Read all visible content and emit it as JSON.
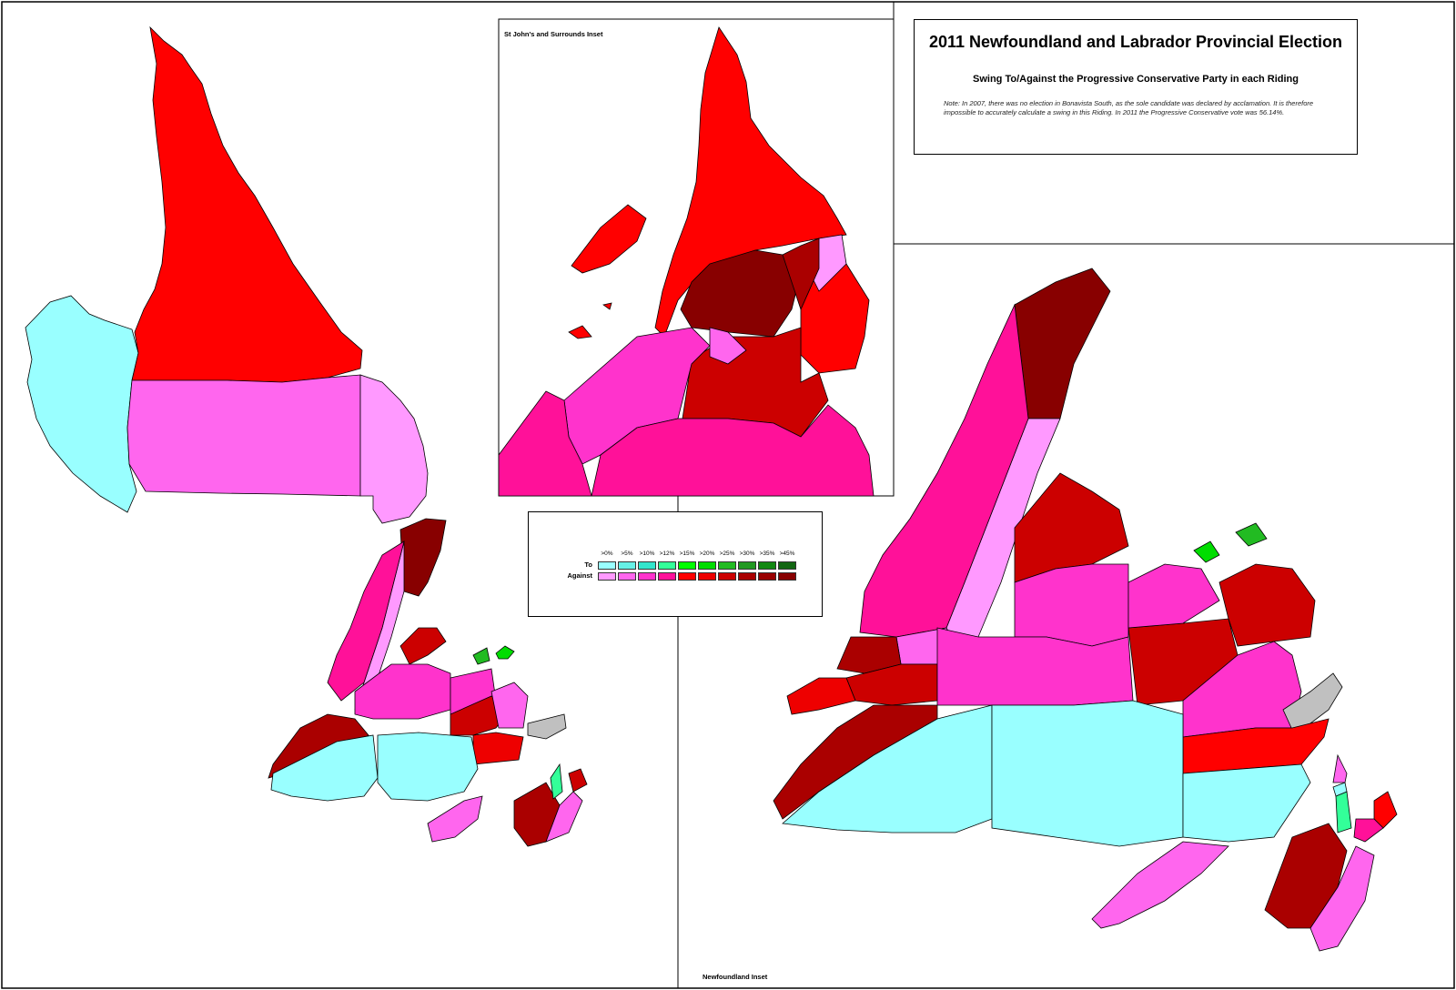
{
  "title": "2011 Newfoundland and Labrador Provincial Election",
  "subtitle": "Swing To/Against the Progressive Conservative Party  in each Riding",
  "note": "Note: In 2007, there was no election in Bonavista South, as the sole candidate was declared by acclamation. It is therefore impossible to accurately calculate a swing in this Riding. In 2011 the Progressive Conservative vote was 56.14%.",
  "insets": {
    "st_johns_label": "St John's and Surrounds Inset",
    "newfoundland_label": "Newfoundland Inset"
  },
  "legend": {
    "thresholds": [
      ">0%",
      ">5%",
      ">10%",
      ">12%",
      ">15%",
      ">20%",
      ">25%",
      ">30%",
      ">35%",
      ">45%"
    ],
    "to_label": "To",
    "against_label": "Against",
    "to_colors": [
      "#99ffff",
      "#66f0e6",
      "#33e6cc",
      "#33ff99",
      "#00ff00",
      "#00dd00",
      "#22bb22",
      "#229922",
      "#118811",
      "#116611"
    ],
    "against_colors": [
      "#ff99ff",
      "#ff66ee",
      "#ff33cc",
      "#ff1199",
      "#ff0000",
      "#ee0000",
      "#cc0000",
      "#aa0000",
      "#990000",
      "#880000"
    ]
  },
  "colors": {
    "border": "#000000",
    "no_data": "#c0c0c0"
  }
}
